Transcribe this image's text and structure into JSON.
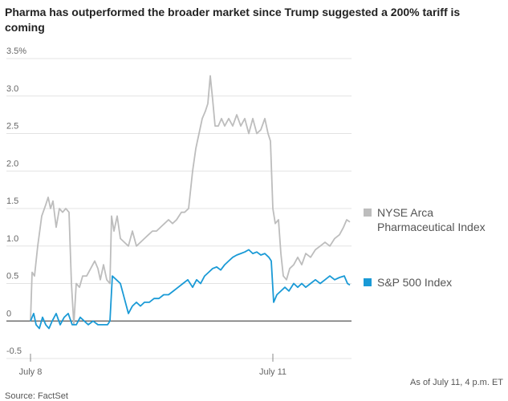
{
  "chart_data": {
    "type": "line",
    "title": "Pharma has outperformed the broader market since Trump suggested a 200% tariff is coming",
    "note": "As of July 11, 4 p.m. ET",
    "source": "Source: FactSet",
    "xlim": [
      0,
      400
    ],
    "xticks": [
      {
        "value": 0,
        "label": "July 8"
      },
      {
        "value": 302,
        "label": "July 11"
      }
    ],
    "ylim": [
      -0.5,
      3.5
    ],
    "yticks": [
      {
        "value": 3.5,
        "label": "3.5%"
      },
      {
        "value": 3,
        "label": "3.0"
      },
      2.5,
      {
        "value": 2,
        "label": "2.0"
      },
      1.5,
      {
        "value": 1,
        "label": "1.0"
      },
      0.5,
      0,
      -0.5
    ],
    "grid": true,
    "legend": "right",
    "series": [
      {
        "name": "NYSE Arca Pharmaceutical Index",
        "color": "#bdbdbd",
        "x": [
          0,
          2,
          5,
          9,
          14,
          19,
          22,
          25,
          28,
          32,
          36,
          40,
          44,
          48,
          51,
          54,
          57,
          61,
          65,
          70,
          75,
          80,
          84,
          87,
          91,
          95,
          99,
          101,
          104,
          108,
          112,
          117,
          122,
          127,
          132,
          137,
          142,
          147,
          152,
          157,
          162,
          167,
          172,
          177,
          182,
          188,
          192,
          197,
          202,
          206,
          210,
          214,
          218,
          221,
          224,
          227,
          230,
          234,
          238,
          242,
          247,
          252,
          257,
          262,
          267,
          272,
          277,
          282,
          287,
          292,
          296,
          299,
          302,
          305,
          309,
          312,
          315,
          319,
          323,
          328,
          333,
          338,
          343,
          349,
          355,
          361,
          367,
          373,
          379,
          385,
          390,
          394,
          398
        ],
        "values": [
          0,
          0.65,
          0.6,
          1.0,
          1.4,
          1.55,
          1.65,
          1.5,
          1.6,
          1.25,
          1.5,
          1.45,
          1.5,
          1.45,
          0.5,
          -0.05,
          0.5,
          0.45,
          0.6,
          0.6,
          0.7,
          0.8,
          0.7,
          0.55,
          0.75,
          0.55,
          0.5,
          1.4,
          1.2,
          1.4,
          1.1,
          1.05,
          1.0,
          1.2,
          1.0,
          1.05,
          1.1,
          1.15,
          1.2,
          1.2,
          1.25,
          1.3,
          1.35,
          1.3,
          1.35,
          1.45,
          1.45,
          1.5,
          2.0,
          2.3,
          2.5,
          2.7,
          2.8,
          2.9,
          3.27,
          2.95,
          2.6,
          2.6,
          2.7,
          2.6,
          2.7,
          2.6,
          2.75,
          2.6,
          2.7,
          2.5,
          2.7,
          2.5,
          2.55,
          2.7,
          2.5,
          2.4,
          1.5,
          1.3,
          1.35,
          0.9,
          0.6,
          0.55,
          0.7,
          0.75,
          0.85,
          0.75,
          0.9,
          0.85,
          0.95,
          1.0,
          1.05,
          1.0,
          1.1,
          1.15,
          1.25,
          1.35,
          1.32
        ]
      },
      {
        "name": "S&P 500 Index",
        "color": "#1a9ad6",
        "x": [
          0,
          4,
          7,
          11,
          15,
          19,
          23,
          27,
          32,
          37,
          42,
          47,
          52,
          57,
          62,
          67,
          72,
          78,
          84,
          90,
          96,
          99,
          102,
          107,
          112,
          117,
          122,
          127,
          132,
          137,
          142,
          148,
          154,
          160,
          166,
          172,
          178,
          184,
          190,
          196,
          202,
          207,
          212,
          217,
          222,
          227,
          232,
          237,
          242,
          247,
          252,
          257,
          262,
          267,
          272,
          277,
          282,
          287,
          292,
          297,
          300,
          303,
          307,
          312,
          317,
          322,
          328,
          333,
          338,
          343,
          349,
          355,
          361,
          367,
          373,
          379,
          385,
          391,
          395,
          398
        ],
        "values": [
          0,
          0.1,
          -0.05,
          -0.1,
          0.05,
          -0.05,
          -0.1,
          0,
          0.1,
          -0.05,
          0.05,
          0.1,
          -0.05,
          -0.05,
          0.05,
          0,
          -0.05,
          0,
          -0.05,
          -0.05,
          -0.05,
          0,
          0.6,
          0.55,
          0.5,
          0.3,
          0.1,
          0.2,
          0.25,
          0.2,
          0.25,
          0.25,
          0.3,
          0.3,
          0.35,
          0.35,
          0.4,
          0.45,
          0.5,
          0.55,
          0.45,
          0.55,
          0.5,
          0.6,
          0.65,
          0.7,
          0.72,
          0.68,
          0.75,
          0.8,
          0.85,
          0.88,
          0.9,
          0.92,
          0.95,
          0.9,
          0.92,
          0.88,
          0.9,
          0.85,
          0.8,
          0.25,
          0.35,
          0.4,
          0.45,
          0.4,
          0.5,
          0.45,
          0.5,
          0.45,
          0.5,
          0.55,
          0.5,
          0.55,
          0.6,
          0.55,
          0.58,
          0.6,
          0.5,
          0.48
        ]
      }
    ]
  }
}
